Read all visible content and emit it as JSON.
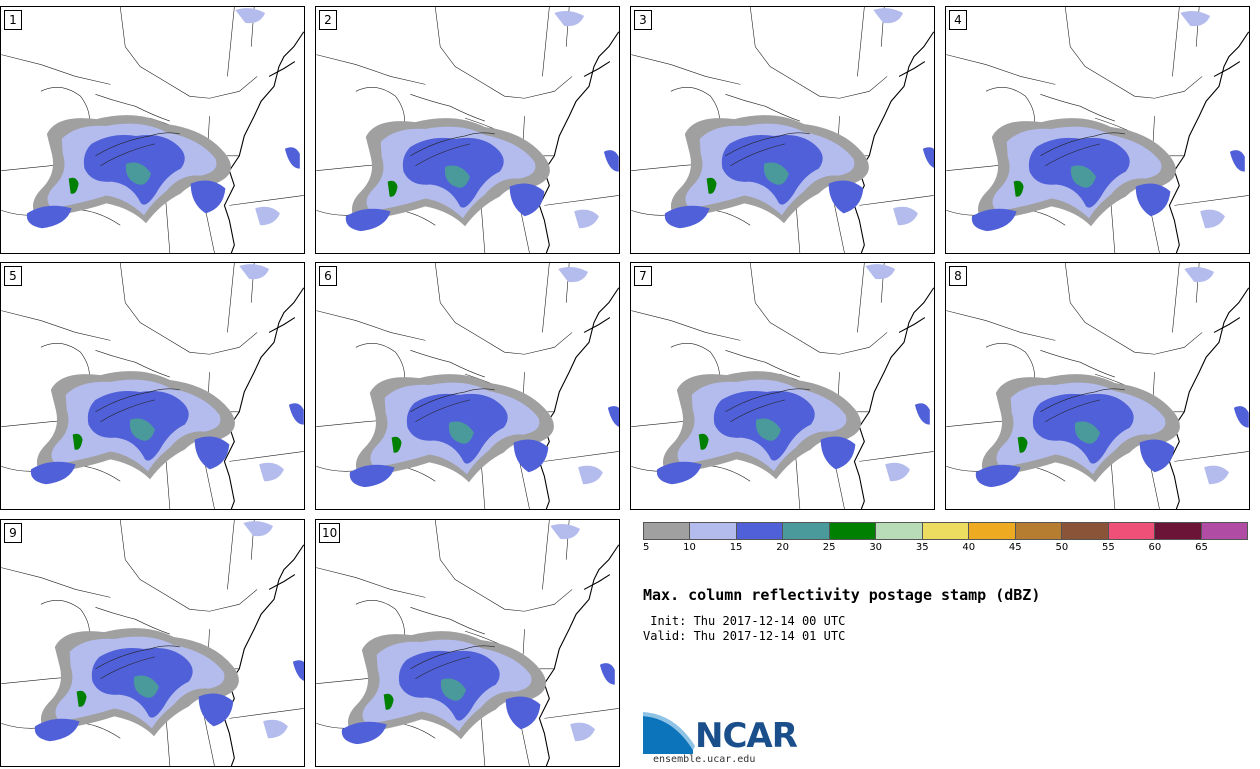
{
  "panels": [
    "1",
    "2",
    "3",
    "4",
    "5",
    "6",
    "7",
    "8",
    "9",
    "10"
  ],
  "legend": {
    "colors": [
      "#a0a0a0",
      "#b4bcee",
      "#5060d8",
      "#4a9a9c",
      "#008000",
      "#b8dcb8",
      "#ecdc60",
      "#eeaa20",
      "#b67c30",
      "#8a5438",
      "#ee5078",
      "#6c1438",
      "#b04ca4"
    ],
    "labels": [
      "5",
      "10",
      "15",
      "20",
      "25",
      "30",
      "35",
      "40",
      "45",
      "50",
      "55",
      "60",
      "65"
    ]
  },
  "title": "Max. column reflectivity postage stamp (dBZ)",
  "init_line": " Init: Thu 2017-12-14 00 UTC",
  "valid_line": "Valid: Thu 2017-12-14 01 UTC",
  "logo": {
    "text": "NCAR",
    "url": "ensemble.ucar.edu"
  }
}
